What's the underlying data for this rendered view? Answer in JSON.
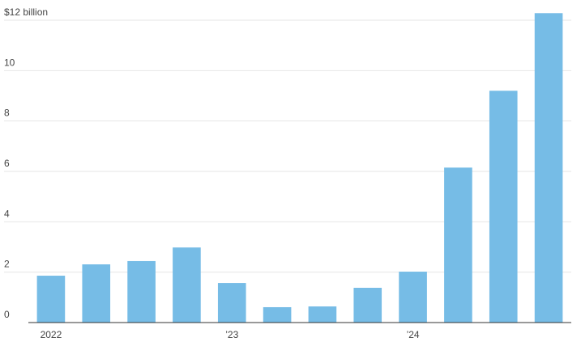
{
  "chart_data": {
    "type": "bar",
    "categories": [
      "2022",
      null,
      null,
      null,
      "’23",
      null,
      null,
      null,
      "’24",
      null,
      null,
      null
    ],
    "values": [
      1.86,
      2.31,
      2.44,
      2.98,
      1.57,
      0.61,
      0.64,
      1.38,
      2.02,
      6.15,
      9.2,
      12.28
    ],
    "color": "#76bce6",
    "ylim": [
      0,
      12
    ],
    "yticks": [
      0,
      2,
      4,
      6,
      8,
      10,
      {
        "value": 12,
        "label": "$12 billion"
      }
    ],
    "grid": true
  }
}
